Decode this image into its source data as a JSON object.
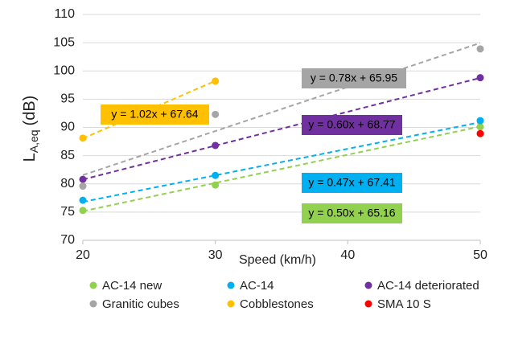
{
  "chart_data": {
    "type": "scatter",
    "xlabel": "Speed (km/h)",
    "ylabel": {
      "main": "L",
      "sub": "A,eq",
      "unit": "(dB)"
    },
    "xlim": [
      20,
      50
    ],
    "xticks": [
      20,
      30,
      40,
      50
    ],
    "ylim": [
      70,
      110
    ],
    "yticks": [
      70,
      75,
      80,
      85,
      90,
      95,
      100,
      105,
      110
    ],
    "grid": true,
    "legend": "bottom",
    "series": [
      {
        "name": "AC-14 new",
        "color": "#92d050",
        "x": [
          20,
          30,
          50
        ],
        "values": [
          75.3,
          79.8,
          90.1
        ],
        "trendline": {
          "slope": 0.5,
          "intercept": 65.16,
          "label": "y = 0.50x + 65.16"
        }
      },
      {
        "name": "AC-14",
        "color": "#00b0f0",
        "x": [
          20,
          30,
          50
        ],
        "values": [
          77.1,
          81.5,
          91.2
        ],
        "trendline": {
          "slope": 0.47,
          "intercept": 67.41,
          "label": "y = 0.47x + 67.41"
        }
      },
      {
        "name": "AC-14 deteriorated",
        "color": "#7030a0",
        "x": [
          20,
          30,
          50
        ],
        "values": [
          80.8,
          86.8,
          98.8
        ],
        "trendline": {
          "slope": 0.6,
          "intercept": 68.77,
          "label": "y = 0.60x + 68.77"
        }
      },
      {
        "name": "Granitic cubes",
        "color": "#a5a5a5",
        "x": [
          20,
          30,
          50
        ],
        "values": [
          79.6,
          92.3,
          103.9
        ],
        "trendline": {
          "slope": 0.78,
          "intercept": 65.95,
          "label": "y = 0.78x + 65.95"
        }
      },
      {
        "name": "Cobblestones",
        "color": "#ffc000",
        "x": [
          20,
          30
        ],
        "values": [
          88.1,
          98.2
        ],
        "trendline": {
          "slope": 1.02,
          "intercept": 67.64,
          "label": "y = 1.02x + 67.64"
        }
      },
      {
        "name": "SMA 10 S",
        "color": "#ff0000",
        "x": [
          50
        ],
        "values": [
          88.9
        ]
      }
    ]
  }
}
